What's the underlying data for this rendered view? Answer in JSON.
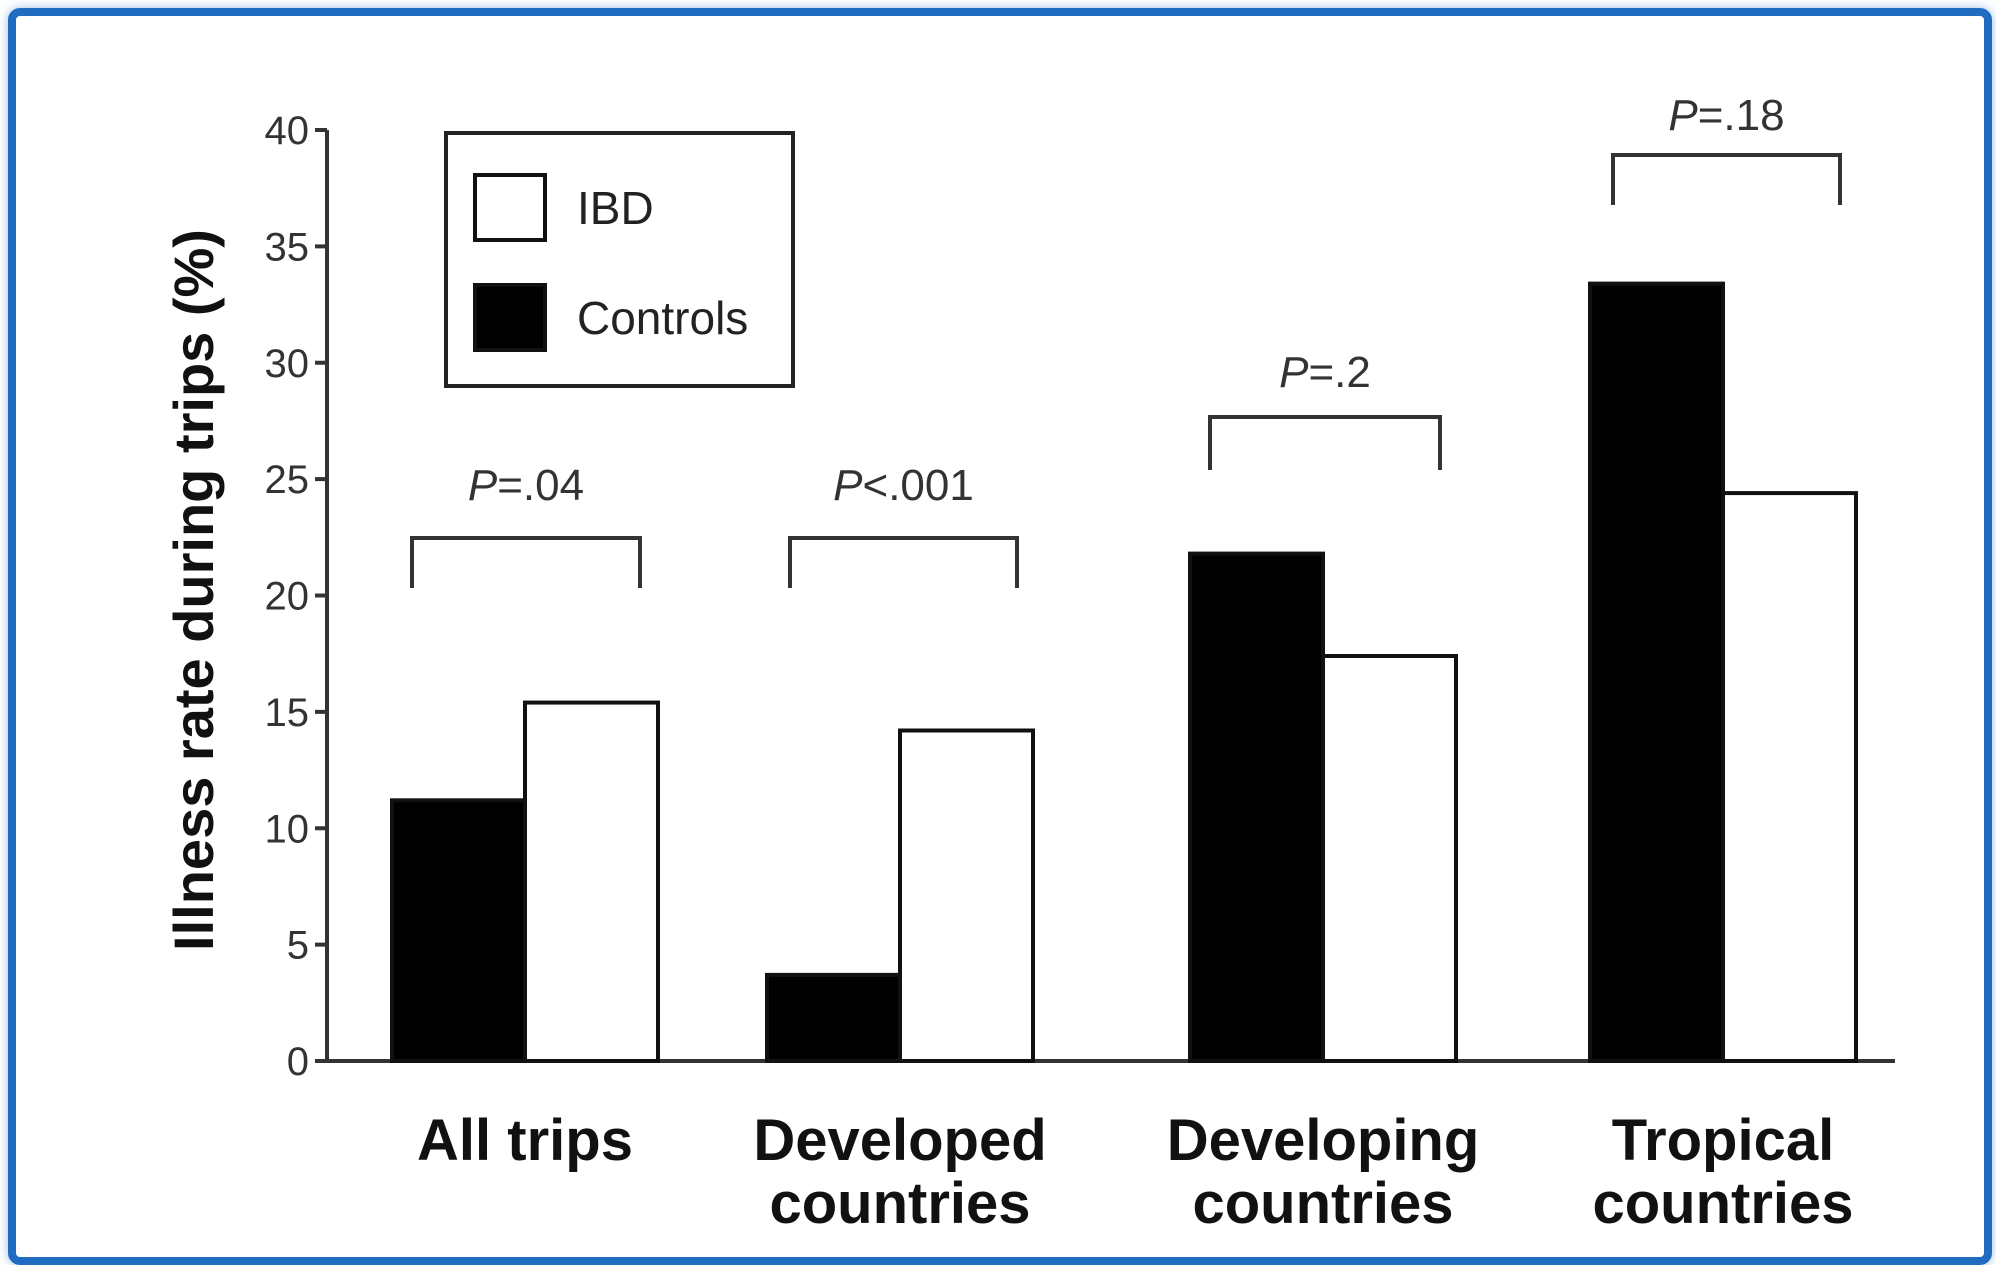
{
  "colors": {
    "frame": "#1f6cc0",
    "ibd_fill": "#ffffff",
    "controls_fill": "#000000",
    "axis": "#333333"
  },
  "chart_data": {
    "type": "bar",
    "xlabel": "",
    "ylabel": "Illness rate during trips (%)",
    "ylim": [
      0,
      40
    ],
    "yticks": [
      0,
      5,
      10,
      15,
      20,
      25,
      30,
      35,
      40
    ],
    "grid": false,
    "legend_position": "top-left",
    "categories": [
      [
        "All trips"
      ],
      [
        "Developed",
        "countries"
      ],
      [
        "Developing",
        "countries"
      ],
      [
        "Tropical",
        "countries"
      ]
    ],
    "series": [
      {
        "name": "Controls",
        "values": [
          11.2,
          3.7,
          21.8,
          33.4
        ],
        "fill": "#000000"
      },
      {
        "name": "IBD",
        "values": [
          15.4,
          14.2,
          17.4,
          24.4
        ],
        "fill": "#ffffff"
      }
    ],
    "legend": [
      {
        "name": "IBD",
        "fill": "#ffffff"
      },
      {
        "name": "Controls",
        "fill": "#000000"
      }
    ],
    "annotations": [
      {
        "p_letter": "P",
        "p_rest": "=.04"
      },
      {
        "p_letter": "P",
        "p_rest": "<.001"
      },
      {
        "p_letter": "P",
        "p_rest": "=.2"
      },
      {
        "p_letter": "P",
        "p_rest": "=.18"
      }
    ]
  }
}
